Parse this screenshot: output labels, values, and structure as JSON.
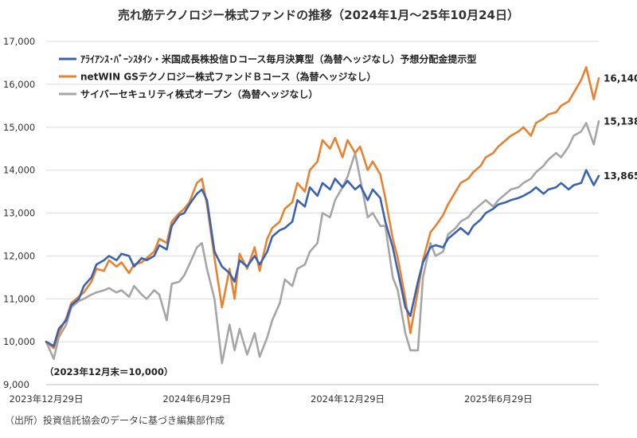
{
  "chart_data": {
    "type": "line",
    "title": "売れ筋テクノロジー株式ファンドの推移（2024年1月～25年10月24日）",
    "ylim": [
      9000,
      17000
    ],
    "yticks": [
      9000,
      10000,
      11000,
      12000,
      13000,
      14000,
      15000,
      16000,
      17000
    ],
    "ytick_labels": [
      "9,000",
      "10,000",
      "11,000",
      "12,000",
      "13,000",
      "14,000",
      "15,000",
      "16,000",
      "17,000"
    ],
    "xlim": [
      0,
      22
    ],
    "xticks": [
      0,
      6,
      12,
      18
    ],
    "xtick_labels": [
      "2023年12月29日",
      "2024年6月29日",
      "2024年12月29日",
      "2025年6月29日"
    ],
    "x_unit": "months since 2023-12-29",
    "annotation": "（2023年12月末＝10,000）",
    "source": "（出所）投資信託協会のデータに基づき編集部作成",
    "series": [
      {
        "name": "ｱﾗｲｱﾝｽ･ﾊﾞｰﾝｽﾀｲﾝ・米国成長株投信Ｄコース毎月決算型（為替ヘッジなし）予想分配金提示型",
        "color": "#3a62b3",
        "end_label": "13,865",
        "x": [
          0,
          0.3,
          0.5,
          0.8,
          1.0,
          1.3,
          1.5,
          1.8,
          2.0,
          2.3,
          2.5,
          2.8,
          3.0,
          3.3,
          3.5,
          3.8,
          4.0,
          4.3,
          4.5,
          4.8,
          5.0,
          5.3,
          5.5,
          5.7,
          6.0,
          6.2,
          6.4,
          6.7,
          7.0,
          7.3,
          7.5,
          7.7,
          8.0,
          8.3,
          8.5,
          8.8,
          9.0,
          9.3,
          9.5,
          9.8,
          10.0,
          10.3,
          10.5,
          10.8,
          11.0,
          11.3,
          11.5,
          11.8,
          12.0,
          12.3,
          12.5,
          12.8,
          13.0,
          13.3,
          13.5,
          13.8,
          14.0,
          14.3,
          14.5,
          14.8,
          15.0,
          15.3,
          15.5,
          15.8,
          16.0,
          16.3,
          16.5,
          16.8,
          17.0,
          17.3,
          17.5,
          17.8,
          18.0,
          18.3,
          18.5,
          18.8,
          19.0,
          19.3,
          19.5,
          19.8,
          20.0,
          20.3,
          20.5,
          20.8,
          21.0,
          21.3,
          21.5,
          21.8,
          22.0
        ],
        "values": [
          10000,
          9900,
          10300,
          10500,
          10850,
          11000,
          11300,
          11500,
          11800,
          11900,
          12000,
          11900,
          12050,
          12000,
          11750,
          11950,
          11900,
          12000,
          12250,
          12150,
          12700,
          12950,
          13000,
          13200,
          13450,
          13550,
          13300,
          12100,
          11750,
          11600,
          11400,
          11900,
          11750,
          12000,
          11800,
          12100,
          12450,
          12600,
          12650,
          12800,
          13300,
          13150,
          13600,
          13400,
          13700,
          13550,
          13800,
          13600,
          13750,
          13550,
          13650,
          13300,
          13550,
          13350,
          12800,
          12200,
          11650,
          10800,
          10600,
          11400,
          11850,
          12200,
          12250,
          12200,
          12400,
          12550,
          12650,
          12500,
          12700,
          12850,
          13000,
          13100,
          13200,
          13250,
          13300,
          13350,
          13400,
          13500,
          13600,
          13450,
          13550,
          13600,
          13700,
          13550,
          13650,
          13700,
          14000,
          13650,
          13865
        ]
      },
      {
        "name": "netWIN GSテクノロジー株式ファンドＢコース（為替ヘッジなし）",
        "color": "#e98230",
        "end_label": "16,140",
        "x": [
          0,
          0.3,
          0.5,
          0.8,
          1.0,
          1.3,
          1.5,
          1.8,
          2.0,
          2.3,
          2.5,
          2.8,
          3.0,
          3.3,
          3.5,
          3.8,
          4.0,
          4.3,
          4.5,
          4.8,
          5.0,
          5.3,
          5.5,
          5.7,
          6.0,
          6.2,
          6.4,
          6.7,
          7.0,
          7.3,
          7.5,
          7.7,
          8.0,
          8.3,
          8.5,
          8.8,
          9.0,
          9.3,
          9.5,
          9.8,
          10.0,
          10.3,
          10.5,
          10.8,
          11.0,
          11.3,
          11.5,
          11.8,
          12.0,
          12.3,
          12.5,
          12.8,
          13.0,
          13.3,
          13.5,
          13.8,
          14.0,
          14.3,
          14.5,
          14.8,
          15.0,
          15.3,
          15.5,
          15.8,
          16.0,
          16.3,
          16.5,
          16.8,
          17.0,
          17.3,
          17.5,
          17.8,
          18.0,
          18.3,
          18.5,
          18.8,
          19.0,
          19.3,
          19.5,
          19.8,
          20.0,
          20.3,
          20.5,
          20.8,
          21.0,
          21.3,
          21.5,
          21.8,
          22.0
        ],
        "values": [
          10000,
          9850,
          10200,
          10550,
          10900,
          11050,
          11150,
          11400,
          11700,
          11650,
          11900,
          11750,
          11850,
          11600,
          11800,
          11850,
          11950,
          12100,
          12400,
          12300,
          12800,
          13000,
          13100,
          13250,
          13700,
          13800,
          13200,
          11950,
          10800,
          11700,
          11000,
          12050,
          11700,
          12200,
          11650,
          12400,
          12650,
          12800,
          13100,
          13250,
          13700,
          13500,
          14000,
          14200,
          14700,
          14500,
          14750,
          14300,
          14700,
          14400,
          14550,
          14000,
          14200,
          13900,
          13350,
          12400,
          11950,
          11000,
          10200,
          11200,
          11900,
          12550,
          12700,
          12950,
          13200,
          13500,
          13700,
          13800,
          13950,
          14100,
          14300,
          14400,
          14550,
          14700,
          14800,
          14900,
          15000,
          14800,
          15100,
          15200,
          15300,
          15350,
          15500,
          15600,
          15800,
          16100,
          16400,
          15650,
          16140
        ]
      },
      {
        "name": "サイバーセキュリティ株式オープン（為替ヘッジなし）",
        "color": "#a6a6a6",
        "end_label": "15,138",
        "x": [
          0,
          0.3,
          0.5,
          0.8,
          1.0,
          1.3,
          1.5,
          1.8,
          2.0,
          2.3,
          2.5,
          2.8,
          3.0,
          3.3,
          3.5,
          3.8,
          4.0,
          4.3,
          4.5,
          4.8,
          5.0,
          5.3,
          5.5,
          5.7,
          6.0,
          6.2,
          6.4,
          6.7,
          7.0,
          7.3,
          7.5,
          7.7,
          8.0,
          8.3,
          8.5,
          8.8,
          9.0,
          9.3,
          9.5,
          9.8,
          10.0,
          10.3,
          10.5,
          10.8,
          11.0,
          11.3,
          11.5,
          11.8,
          12.0,
          12.3,
          12.5,
          12.8,
          13.0,
          13.3,
          13.5,
          13.8,
          14.0,
          14.3,
          14.5,
          14.8,
          15.0,
          15.3,
          15.5,
          15.8,
          16.0,
          16.3,
          16.5,
          16.8,
          17.0,
          17.3,
          17.5,
          17.8,
          18.0,
          18.3,
          18.5,
          18.8,
          19.0,
          19.3,
          19.5,
          19.8,
          20.0,
          20.3,
          20.5,
          20.8,
          21.0,
          21.3,
          21.5,
          21.8,
          22.0
        ],
        "values": [
          10000,
          9600,
          10100,
          10400,
          10800,
          10950,
          11000,
          11100,
          11150,
          11200,
          11250,
          11150,
          11200,
          11050,
          11300,
          11100,
          11000,
          11200,
          11100,
          10500,
          11350,
          11400,
          11550,
          11800,
          12200,
          12300,
          11700,
          11000,
          9500,
          10400,
          9800,
          10300,
          9700,
          10200,
          9650,
          10100,
          10500,
          10900,
          11450,
          11300,
          11700,
          11800,
          12100,
          12300,
          13000,
          12900,
          13300,
          13600,
          13850,
          14400,
          13800,
          12900,
          13000,
          12700,
          12700,
          11500,
          11200,
          10200,
          9800,
          9800,
          11500,
          12300,
          12000,
          12100,
          12500,
          12650,
          12800,
          12900,
          13050,
          13200,
          13300,
          13150,
          13300,
          13450,
          13550,
          13600,
          13700,
          13800,
          13950,
          14100,
          14250,
          14400,
          14300,
          14550,
          14800,
          14900,
          15100,
          14600,
          15138
        ]
      }
    ]
  }
}
